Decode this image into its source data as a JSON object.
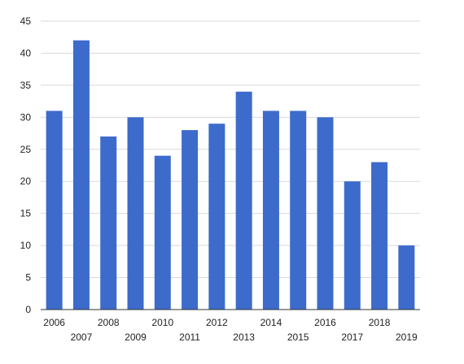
{
  "chart_data": {
    "type": "bar",
    "categories": [
      "2006",
      "2007",
      "2008",
      "2009",
      "2010",
      "2011",
      "2012",
      "2013",
      "2014",
      "2015",
      "2016",
      "2017",
      "2018",
      "2019"
    ],
    "values": [
      31,
      42,
      27,
      30,
      24,
      28,
      29,
      34,
      31,
      31,
      30,
      20,
      23,
      10
    ],
    "ylim": [
      0,
      45
    ],
    "yticks": [
      "0",
      "5",
      "10",
      "15",
      "20",
      "25",
      "30",
      "35",
      "40",
      "45"
    ],
    "grid": true,
    "legend": "none",
    "colors": {
      "bar": "#3d6bcc"
    }
  }
}
